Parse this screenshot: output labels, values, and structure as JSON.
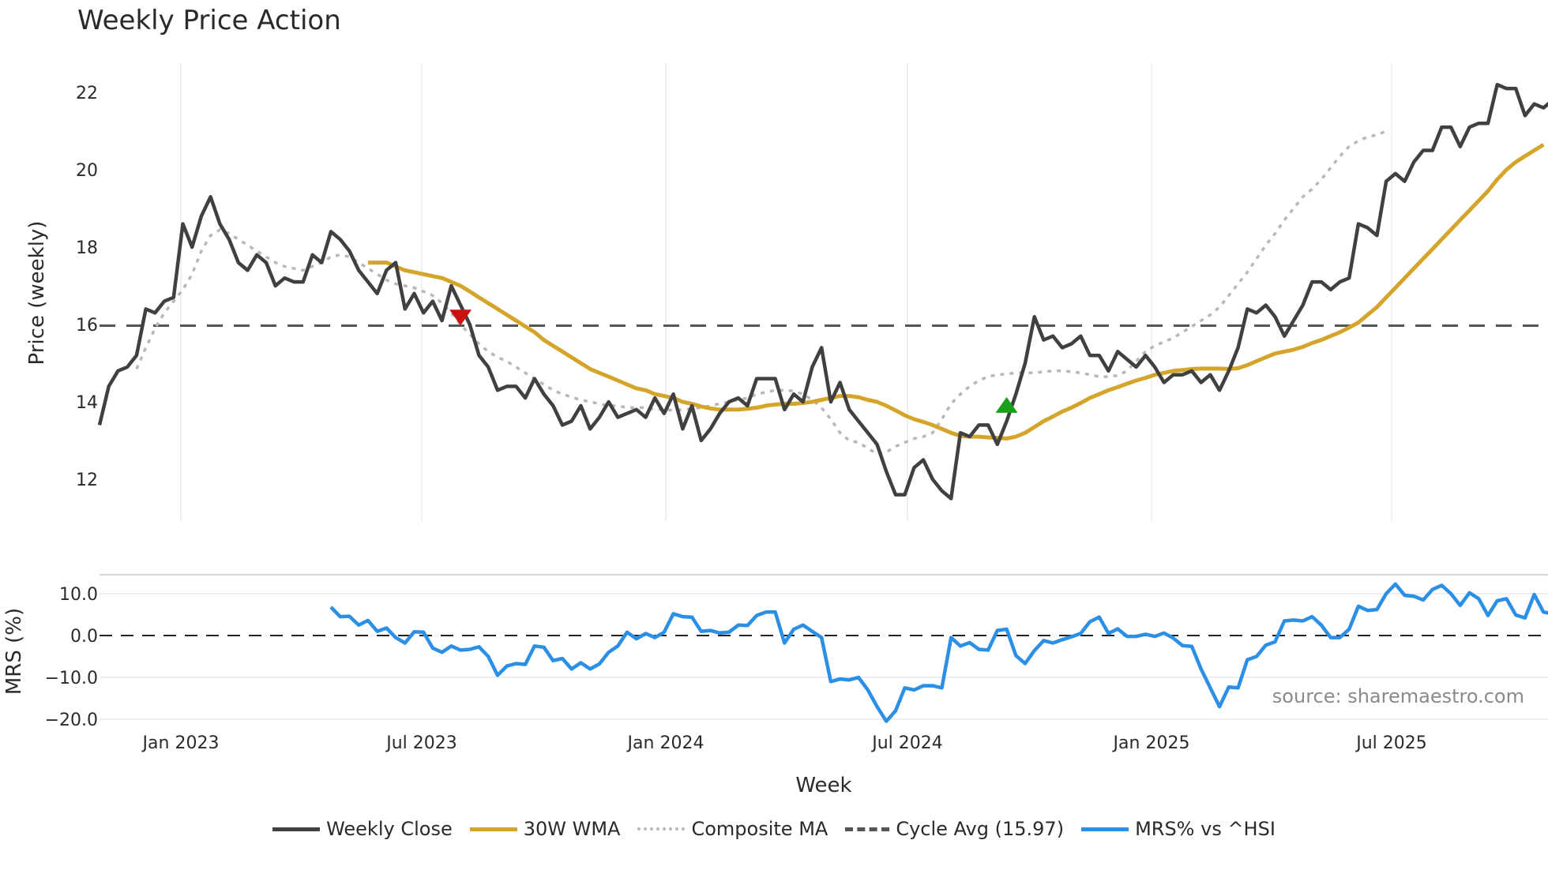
{
  "title": "Weekly Price Action",
  "legend": {
    "items": [
      {
        "label": "Weekly Close",
        "color": "#404040",
        "style": "solid"
      },
      {
        "label": "30W WMA",
        "color": "#d4a52a",
        "style": "solid"
      },
      {
        "label": "Composite MA",
        "color": "#b8b8b8",
        "style": "dotted"
      },
      {
        "label": "Cycle Avg (15.97)",
        "color": "#555555",
        "style": "dashed"
      },
      {
        "label": "MRS% vs ^HSI",
        "color": "#2b8fe6",
        "style": "solid"
      }
    ]
  },
  "source_label": "source: sharemaestro.com",
  "chart_data": [
    {
      "type": "line",
      "title": "Weekly Price Action",
      "xlabel": "Week",
      "ylabel": "Price (weekly)",
      "ylim": [
        10.9,
        22.8
      ],
      "yticks": [
        12,
        14,
        16,
        18,
        20,
        22
      ],
      "xtick_labels": [
        "Jan 2023",
        "Jul 2023",
        "Jan 2024",
        "Jul 2024",
        "Jan 2025",
        "Jul 2025"
      ],
      "grid": "vertical",
      "reference_line": {
        "label": "Cycle Avg (15.97)",
        "value": 15.97
      },
      "signals": [
        {
          "type": "sell",
          "marker": "down-triangle",
          "color": "#cc1111",
          "week_index": 39,
          "value": 16.2
        },
        {
          "type": "buy",
          "marker": "up-triangle",
          "color": "#1aa01a",
          "week_index": 98,
          "value": 13.9
        }
      ],
      "series": [
        {
          "name": "Weekly Close",
          "values": [
            13.4,
            14.4,
            14.8,
            14.9,
            15.2,
            16.4,
            16.3,
            16.6,
            16.7,
            18.6,
            18.0,
            18.8,
            19.3,
            18.6,
            18.2,
            17.6,
            17.4,
            17.8,
            17.6,
            17.0,
            17.2,
            17.1,
            17.1,
            17.8,
            17.6,
            18.4,
            18.2,
            17.9,
            17.4,
            17.1,
            16.8,
            17.4,
            17.6,
            16.4,
            16.8,
            16.3,
            16.6,
            16.1,
            17.0,
            16.5,
            16.0,
            15.2,
            14.9,
            14.3,
            14.4,
            14.4,
            14.1,
            14.6,
            14.2,
            13.9,
            13.4,
            13.5,
            13.9,
            13.3,
            13.6,
            14.0,
            13.6,
            13.7,
            13.8,
            13.6,
            14.1,
            13.7,
            14.2,
            13.3,
            13.9,
            13.0,
            13.3,
            13.7,
            14.0,
            14.1,
            13.9,
            14.6,
            14.6,
            14.6,
            13.8,
            14.2,
            14.0,
            14.9,
            15.4,
            14.0,
            14.5,
            13.8,
            13.5,
            13.2,
            12.9,
            12.2,
            11.6,
            11.6,
            12.3,
            12.5,
            12.0,
            11.7,
            11.5,
            13.2,
            13.1,
            13.4,
            13.4,
            12.9,
            13.5,
            14.2,
            15.0,
            16.2,
            15.6,
            15.7,
            15.4,
            15.5,
            15.7,
            15.2,
            15.2,
            14.8,
            15.3,
            15.1,
            14.9,
            15.2,
            14.9,
            14.5,
            14.7,
            14.7,
            14.8,
            14.5,
            14.7,
            14.3,
            14.8,
            15.4,
            16.4,
            16.3,
            16.5,
            16.2,
            15.7,
            16.1,
            16.5,
            17.1,
            17.1,
            16.9,
            17.1,
            17.2,
            18.6,
            18.5,
            18.3,
            19.7,
            19.9,
            19.7,
            20.2,
            20.5,
            20.5,
            21.1,
            21.1,
            20.6,
            21.1,
            21.2,
            21.2,
            22.2,
            22.1,
            22.1,
            21.4,
            21.7,
            21.6,
            21.8
          ]
        },
        {
          "name": "30W WMA",
          "start_index": 29,
          "values": [
            17.6,
            17.6,
            17.6,
            17.5,
            17.4,
            17.35,
            17.3,
            17.25,
            17.2,
            17.1,
            17.0,
            16.85,
            16.7,
            16.55,
            16.4,
            16.25,
            16.1,
            15.95,
            15.8,
            15.6,
            15.45,
            15.3,
            15.15,
            15.0,
            14.85,
            14.75,
            14.65,
            14.55,
            14.45,
            14.35,
            14.3,
            14.2,
            14.15,
            14.1,
            14.0,
            13.95,
            13.88,
            13.83,
            13.8,
            13.8,
            13.8,
            13.82,
            13.85,
            13.9,
            13.93,
            13.95,
            13.95,
            13.97,
            14.0,
            14.05,
            14.1,
            14.15,
            14.15,
            14.12,
            14.05,
            14.0,
            13.9,
            13.78,
            13.65,
            13.55,
            13.48,
            13.4,
            13.3,
            13.2,
            13.12,
            13.1,
            13.1,
            13.08,
            13.07,
            13.05,
            13.1,
            13.2,
            13.35,
            13.5,
            13.62,
            13.75,
            13.85,
            13.97,
            14.1,
            14.2,
            14.3,
            14.38,
            14.47,
            14.55,
            14.62,
            14.7,
            14.75,
            14.8,
            14.82,
            14.85,
            14.86,
            14.86,
            14.86,
            14.85,
            14.87,
            14.95,
            15.05,
            15.15,
            15.25,
            15.3,
            15.35,
            15.42,
            15.52,
            15.6,
            15.7,
            15.8,
            15.92,
            16.05,
            16.25,
            16.45,
            16.7,
            16.95,
            17.2,
            17.45,
            17.7,
            17.95,
            18.2,
            18.45,
            18.7,
            18.95,
            19.2,
            19.45,
            19.75,
            20.0,
            20.2,
            20.35,
            20.5,
            20.65
          ]
        },
        {
          "name": "Composite MA",
          "start_index": 4,
          "values": [
            14.85,
            15.4,
            15.9,
            16.3,
            16.6,
            16.9,
            17.3,
            17.9,
            18.3,
            18.45,
            18.35,
            18.2,
            18.05,
            17.9,
            17.75,
            17.6,
            17.5,
            17.45,
            17.4,
            17.5,
            17.6,
            17.75,
            17.8,
            17.75,
            17.6,
            17.45,
            17.3,
            17.15,
            17.05,
            17.0,
            16.95,
            16.85,
            16.75,
            16.55,
            16.3,
            16.0,
            15.75,
            15.5,
            15.3,
            15.15,
            15.05,
            14.9,
            14.75,
            14.6,
            14.45,
            14.3,
            14.2,
            14.12,
            14.05,
            14.0,
            13.95,
            13.9,
            13.9,
            13.85,
            13.85,
            13.85,
            13.8,
            13.8,
            13.78,
            13.8,
            13.82,
            13.85,
            13.9,
            13.95,
            14.0,
            14.05,
            14.1,
            14.2,
            14.25,
            14.3,
            14.3,
            14.28,
            14.2,
            14.05,
            13.85,
            13.55,
            13.2,
            13.0,
            12.95,
            12.8,
            12.65,
            12.7,
            12.85,
            12.95,
            13.05,
            13.1,
            13.2,
            13.55,
            13.95,
            14.2,
            14.4,
            14.55,
            14.65,
            14.7,
            14.72,
            14.75,
            14.75,
            14.75,
            14.78,
            14.8,
            14.8,
            14.78,
            14.75,
            14.7,
            14.65,
            14.65,
            14.68,
            14.8,
            15.05,
            15.3,
            15.45,
            15.55,
            15.65,
            15.8,
            15.95,
            16.1,
            16.25,
            16.45,
            16.75,
            17.05,
            17.35,
            17.7,
            18.05,
            18.35,
            18.7,
            19.0,
            19.3,
            19.5,
            19.75,
            20.05,
            20.35,
            20.6,
            20.75,
            20.85,
            20.9,
            21.0
          ]
        }
      ]
    },
    {
      "type": "line",
      "title": "",
      "xlabel": "Week",
      "ylabel": "MRS (%)",
      "ylim": [
        -21.5,
        14.5
      ],
      "yticks": [
        -20.0,
        -10.0,
        0.0,
        10.0
      ],
      "ytick_labels": [
        "−20.0",
        "−10.0",
        "0.0",
        "10.0"
      ],
      "reference_line": {
        "value": 0.0,
        "style": "dashed"
      },
      "series": [
        {
          "name": "MRS% vs ^HSI",
          "start_index": 25,
          "values": [
            6.8,
            4.5,
            4.6,
            2.5,
            3.6,
            1.0,
            1.8,
            -0.5,
            -1.8,
            0.9,
            0.8,
            -3.0,
            -4.0,
            -2.5,
            -3.5,
            -3.3,
            -2.7,
            -5.0,
            -9.5,
            -7.3,
            -6.7,
            -6.9,
            -2.5,
            -2.8,
            -6.0,
            -5.5,
            -8.0,
            -6.5,
            -8.0,
            -6.8,
            -4.0,
            -2.5,
            0.8,
            -0.8,
            0.5,
            -0.5,
            0.8,
            5.2,
            4.5,
            4.4,
            1.0,
            1.2,
            0.6,
            0.8,
            2.5,
            2.4,
            4.8,
            5.6,
            5.6,
            -1.8,
            1.5,
            2.5,
            1.0,
            -0.5,
            -11.0,
            -10.4,
            -10.6,
            -10.0,
            -13.0,
            -17.0,
            -20.5,
            -18.0,
            -12.5,
            -13.0,
            -12.0,
            -12.0,
            -12.5,
            -0.5,
            -2.5,
            -1.7,
            -3.3,
            -3.5,
            1.2,
            1.5,
            -4.8,
            -6.7,
            -3.6,
            -1.2,
            -1.8,
            -1.0,
            -0.3,
            0.5,
            3.3,
            4.4,
            0.5,
            1.6,
            -0.2,
            -0.2,
            0.3,
            -0.2,
            0.6,
            -0.6,
            -2.4,
            -2.6,
            -8.0,
            -12.5,
            -17.0,
            -12.3,
            -12.5,
            -5.8,
            -5.0,
            -2.3,
            -1.5,
            3.5,
            3.7,
            3.5,
            4.5,
            2.5,
            -0.5,
            -0.5,
            1.5,
            7.0,
            6.0,
            6.2,
            10.0,
            12.3,
            9.6,
            9.4,
            8.5,
            11.0,
            12.0,
            10.0,
            7.2,
            10.2,
            8.8,
            4.8,
            8.3,
            8.8,
            4.9,
            4.2,
            9.8,
            5.6,
            5.2
          ]
        }
      ]
    }
  ]
}
